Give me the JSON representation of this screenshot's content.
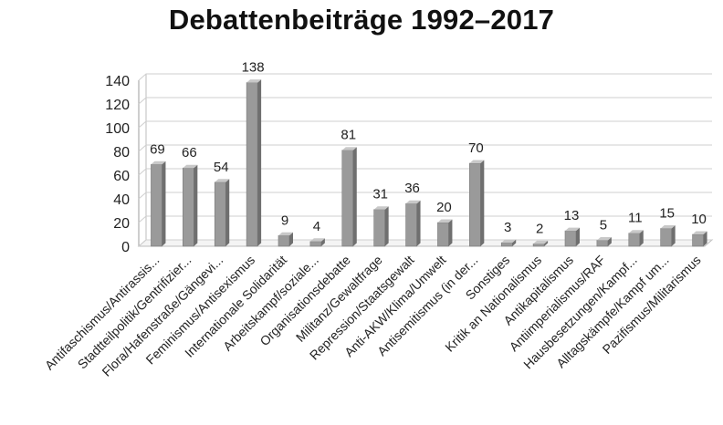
{
  "chart_data": {
    "type": "bar",
    "title": "Debattenbeiträge 1992–2017",
    "xlabel": "",
    "ylabel": "",
    "ylim": [
      0,
      140
    ],
    "yticks": [
      0,
      20,
      40,
      60,
      80,
      100,
      120,
      140
    ],
    "grid": true,
    "legend": "none",
    "style": "3d-column",
    "colors": {
      "bar": "#9a9a9a",
      "bar_top": "#c8c8c8",
      "bar_side": "#6f6f6f",
      "grid": "#cfcfcf"
    },
    "categories": [
      "Antifaschismus/Antirassis...",
      "Stadtteilpolitik/Gentrifizier...",
      "Flora/Hafenstraße/Gängevi...",
      "Feminismus/Antisexismus",
      "Internationale Solidarität",
      "Arbeitskampf/soziale...",
      "Organisationsdebatte",
      "Militanz/Gewaltfrage",
      "Repression/Staatsgewalt",
      "Anti-AKW/Klima/Umwelt",
      "Antisemitismus (in der...",
      "Sonstiges",
      "Kritik an Nationalismus",
      "Antikapitalismus",
      "Antiimperialismus/RAF",
      "Hausbesetzungen/Kampf...",
      "Alltagskämpfe/Kampf um...",
      "Pazifismus/Militarismus"
    ],
    "values": [
      69,
      66,
      54,
      138,
      9,
      4,
      81,
      31,
      36,
      20,
      70,
      3,
      2,
      13,
      5,
      11,
      15,
      10
    ]
  }
}
